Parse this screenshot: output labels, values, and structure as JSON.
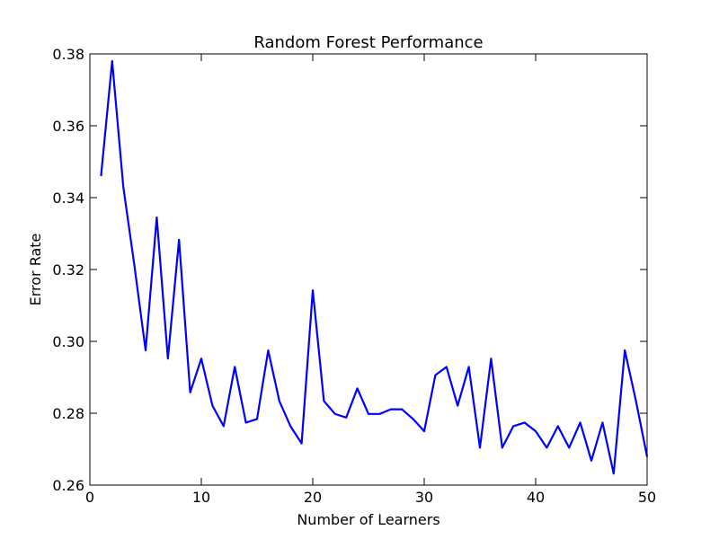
{
  "chart_data": {
    "type": "line",
    "title": "Random Forest Performance",
    "xlabel": "Number of Learners",
    "ylabel": "Error Rate",
    "xlim": [
      0,
      50
    ],
    "ylim": [
      0.26,
      0.38
    ],
    "xticks": [
      0,
      10,
      20,
      30,
      40,
      50
    ],
    "xtick_labels": [
      "0",
      "10",
      "20",
      "30",
      "40",
      "50"
    ],
    "yticks": [
      0.26,
      0.28,
      0.3,
      0.32,
      0.34,
      0.36,
      0.38
    ],
    "ytick_labels": [
      "0.26",
      "0.28",
      "0.30",
      "0.32",
      "0.34",
      "0.36",
      "0.38"
    ],
    "grid": false,
    "series": [
      {
        "color": "#0000ff",
        "x": [
          1,
          2,
          3,
          4,
          5,
          6,
          7,
          8,
          9,
          10,
          11,
          12,
          13,
          14,
          15,
          16,
          17,
          18,
          19,
          20,
          21,
          22,
          23,
          24,
          25,
          26,
          27,
          28,
          29,
          30,
          31,
          32,
          33,
          34,
          35,
          36,
          37,
          38,
          39,
          40,
          41,
          42,
          43,
          44,
          45,
          46,
          47,
          48,
          49,
          50
        ],
        "y": [
          0.346,
          0.378,
          0.343,
          0.321,
          0.2975,
          0.3345,
          0.2952,
          0.3283,
          0.2858,
          0.2952,
          0.2821,
          0.2764,
          0.2929,
          0.2774,
          0.2784,
          0.2975,
          0.2834,
          0.2764,
          0.2716,
          0.3142,
          0.2834,
          0.2798,
          0.2788,
          0.2869,
          0.2798,
          0.2798,
          0.2811,
          0.2811,
          0.2784,
          0.275,
          0.2906,
          0.2929,
          0.2821,
          0.2929,
          0.2704,
          0.2952,
          0.2704,
          0.2764,
          0.2774,
          0.275,
          0.2704,
          0.2764,
          0.2704,
          0.2774,
          0.2668,
          0.2774,
          0.2632,
          0.2975,
          0.2834,
          0.2679
        ]
      }
    ]
  }
}
